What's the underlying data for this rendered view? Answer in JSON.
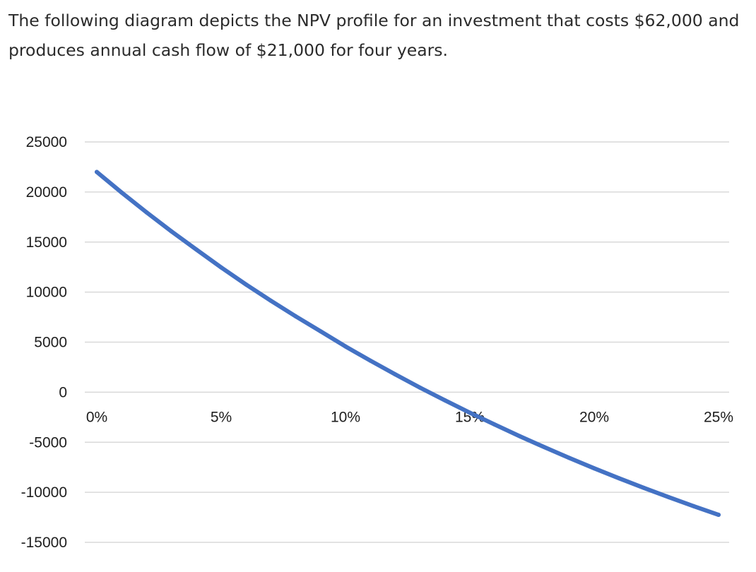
{
  "question": {
    "text": "The following diagram depicts the NPV profile for an investment that costs $62,000 and produces annual cash flow of $21,000 for four years."
  },
  "chart_data": {
    "type": "line",
    "title": "",
    "xlabel": "",
    "ylabel": "",
    "x_ticks": [
      "0%",
      "5%",
      "10%",
      "15%",
      "20%",
      "25%"
    ],
    "y_ticks": [
      "25000",
      "20000",
      "15000",
      "10000",
      "5000",
      "0",
      "-5000",
      "-10000",
      "-15000"
    ],
    "xlim": [
      0,
      25
    ],
    "ylim": [
      -15000,
      25000
    ],
    "grid": true,
    "legend": "none",
    "series": [
      {
        "color": "#4472C4",
        "x": [
          0,
          1,
          2,
          3,
          4,
          5,
          6,
          7,
          8,
          9,
          10,
          11,
          12,
          13,
          14,
          15,
          16,
          17,
          18,
          19,
          20,
          21,
          22,
          23,
          24,
          25
        ],
        "y": [
          22000,
          19940,
          17965,
          16072,
          14257,
          12465,
          10760,
          9132,
          7577,
          6076,
          4567,
          3152,
          1786,
          450,
          -813,
          -2046,
          -3234,
          -4390,
          -5500,
          -6572,
          -7605,
          -8600,
          -9564,
          -10495,
          -11387,
          -12250
        ]
      }
    ]
  }
}
